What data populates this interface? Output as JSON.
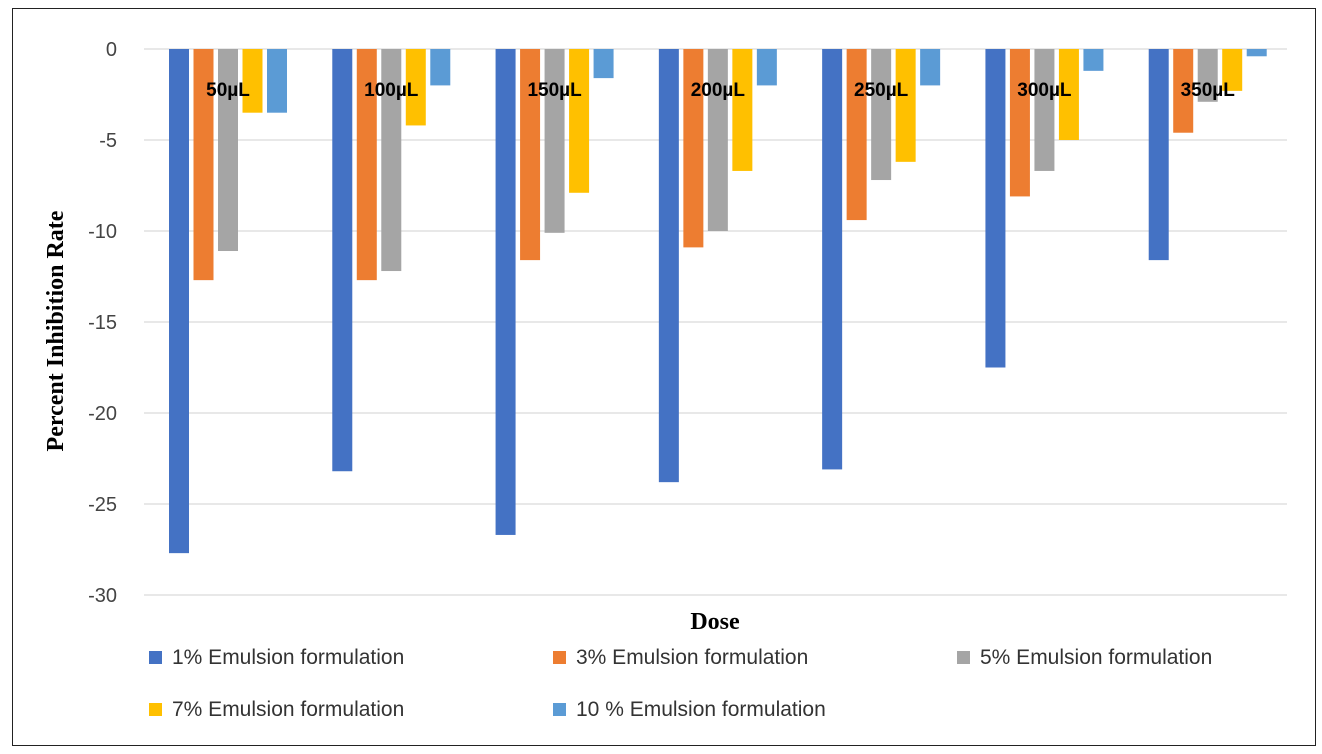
{
  "chart_data": {
    "type": "bar",
    "title": "",
    "xlabel": "Dose",
    "ylabel": "Percent Inhibition  Rate",
    "ylim": [
      -30,
      0
    ],
    "yticks": [
      0,
      -5,
      -10,
      -15,
      -20,
      -25,
      -30
    ],
    "grid": true,
    "legend_position": "bottom",
    "categories": [
      "50µL",
      "100µL",
      "150µL",
      "200µL",
      "250µL",
      "300µL",
      "350µL"
    ],
    "series": [
      {
        "name": "1% Emulsion formulation",
        "color": "#4472C4",
        "values": [
          -27.7,
          -23.2,
          -26.7,
          -23.8,
          -23.1,
          -17.5,
          -11.6
        ]
      },
      {
        "name": "3%  Emulsion formulation",
        "color": "#ED7D31",
        "values": [
          -12.7,
          -12.7,
          -11.6,
          -10.9,
          -9.4,
          -8.1,
          -4.6
        ]
      },
      {
        "name": "5%  Emulsion formulation",
        "color": "#A5A5A5",
        "values": [
          -11.1,
          -12.2,
          -10.1,
          -10.0,
          -7.2,
          -6.7,
          -2.9
        ]
      },
      {
        "name": "7%  Emulsion formulation",
        "color": "#FFC000",
        "values": [
          -3.5,
          -4.2,
          -7.9,
          -6.7,
          -6.2,
          -5.0,
          -2.3
        ]
      },
      {
        "name": "10 % Emulsion formulation",
        "color": "#5B9BD5",
        "values": [
          -3.5,
          -2.0,
          -1.6,
          -2.0,
          -2.0,
          -1.2,
          -0.4
        ]
      }
    ]
  }
}
